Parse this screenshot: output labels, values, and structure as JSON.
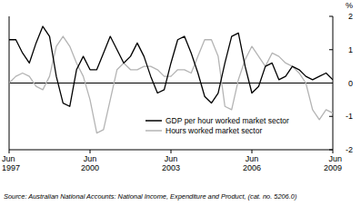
{
  "chart_data": {
    "type": "line",
    "y_label": "%",
    "source": "Source: Australian National Accounts: National Income, Expenditure and Product, (cat. no. 5206.0)",
    "categories": [
      "Jun 1997",
      null,
      null,
      null,
      null,
      null,
      null,
      null,
      null,
      null,
      null,
      null,
      "Jun 2000",
      null,
      null,
      null,
      null,
      null,
      null,
      null,
      null,
      null,
      null,
      null,
      "Jun 2003",
      null,
      null,
      null,
      null,
      null,
      null,
      null,
      null,
      null,
      null,
      null,
      "Jun 2006",
      null,
      null,
      null,
      null,
      null,
      null,
      null,
      null,
      null,
      null,
      null,
      "Jun 2009"
    ],
    "series": [
      {
        "name": "GDP per hour worked market sector",
        "color": "#000000",
        "values": [
          1.3,
          1.3,
          0.9,
          0.6,
          1.2,
          1.7,
          1.4,
          0.2,
          -0.6,
          -0.7,
          0.4,
          0.8,
          0.4,
          0.4,
          0.9,
          1.4,
          1.0,
          0.6,
          0.8,
          1.2,
          0.8,
          0.2,
          -0.3,
          -0.2,
          0.6,
          1.3,
          1.4,
          0.9,
          0.3,
          -0.4,
          -0.6,
          -0.3,
          0.6,
          1.4,
          1.5,
          0.5,
          -0.3,
          -0.1,
          0.5,
          0.6,
          0.1,
          0.2,
          0.5,
          0.4,
          0.2,
          0.1,
          0.2,
          0.3,
          0.1
        ]
      },
      {
        "name": "Hours worked market sector",
        "color": "#b4b4b4",
        "values": [
          0.0,
          0.2,
          0.3,
          0.2,
          -0.1,
          -0.2,
          0.2,
          1.1,
          1.4,
          1.1,
          0.6,
          0.2,
          -0.5,
          -1.5,
          -1.4,
          -0.5,
          0.4,
          0.6,
          0.4,
          0.4,
          0.5,
          0.5,
          0.4,
          0.2,
          0.2,
          0.4,
          0.4,
          0.3,
          0.8,
          1.3,
          1.3,
          0.8,
          -0.7,
          -0.8,
          0.1,
          0.7,
          1.1,
          0.8,
          0.5,
          0.9,
          0.8,
          0.6,
          0.5,
          0.3,
          0.0,
          -0.8,
          -1.1,
          -0.8,
          -0.9
        ]
      }
    ],
    "ylim": [
      -2,
      2
    ],
    "yticks": [
      -2,
      -1,
      0,
      1,
      2
    ],
    "legend": "lower right",
    "grid": false
  }
}
